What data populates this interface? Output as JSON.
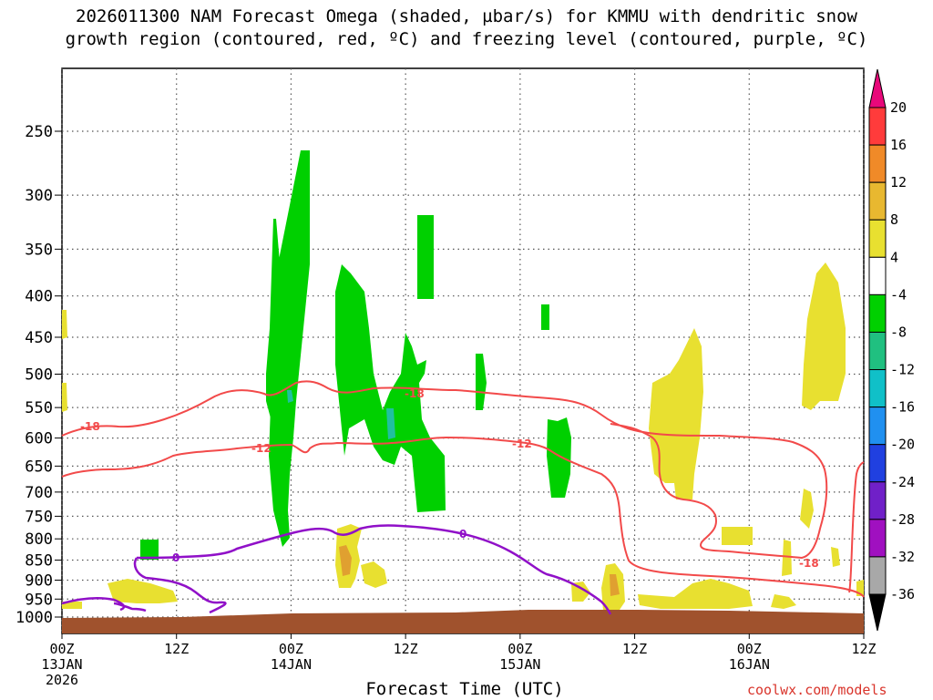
{
  "chart_data": {
    "type": "time-height cross section",
    "title_line1": "2026011300 NAM Forecast Omega (shaded, µbar/s) for KMMU with dendritic snow",
    "title_line2": "growth region (contoured, red, ºC) and freezing level (contoured, purple, ºC)",
    "xlabel": "Forecast Time (UTC)",
    "credit": "coolwx.com/models",
    "pressure_ticks": [
      250,
      300,
      350,
      400,
      450,
      500,
      550,
      600,
      650,
      700,
      750,
      800,
      850,
      900,
      950,
      1000
    ],
    "time_ticks": [
      {
        "h": 0,
        "l1": "00Z",
        "l2": "13JAN",
        "l3": "2026"
      },
      {
        "h": 12,
        "l1": "12Z",
        "l2": "",
        "l3": ""
      },
      {
        "h": 24,
        "l1": "00Z",
        "l2": "14JAN",
        "l3": ""
      },
      {
        "h": 36,
        "l1": "12Z",
        "l2": "",
        "l3": ""
      },
      {
        "h": 48,
        "l1": "00Z",
        "l2": "15JAN",
        "l3": ""
      },
      {
        "h": 60,
        "l1": "12Z",
        "l2": "",
        "l3": ""
      },
      {
        "h": 72,
        "l1": "00Z",
        "l2": "16JAN",
        "l3": ""
      },
      {
        "h": 84,
        "l1": "12Z",
        "l2": "",
        "l3": ""
      }
    ],
    "colorbar": {
      "levels": [
        20,
        16,
        12,
        8,
        4,
        -4,
        -8,
        -12,
        -16,
        -20,
        -24,
        -28,
        -32,
        -36
      ],
      "colors": [
        "#ff3b3b",
        "#f08a28",
        "#e8b830",
        "#e8e030",
        "#ffffff",
        "#00d000",
        "#20c080",
        "#10c0c8",
        "#2090f0",
        "#2040e0",
        "#7020c8",
        "#a010c0",
        "#a8a8a8"
      ],
      "top_color": "#e8087a",
      "bottom_color": "#000000"
    },
    "freezing_level_contour": [
      {
        "label": "0"
      }
    ],
    "dgz_contours": [
      {
        "value": -18,
        "labels": [
          "-18",
          "-18",
          "-18"
        ]
      },
      {
        "value": -12,
        "labels": [
          "-12",
          "-12"
        ]
      }
    ],
    "colors": {
      "dgz": "#f24a4a",
      "freezing": "#9010c8",
      "green": "#00d000",
      "yellow": "#e8e030",
      "orange": "#e0a030",
      "teal": "#20c0a0",
      "terrain": "#a0522d"
    }
  }
}
